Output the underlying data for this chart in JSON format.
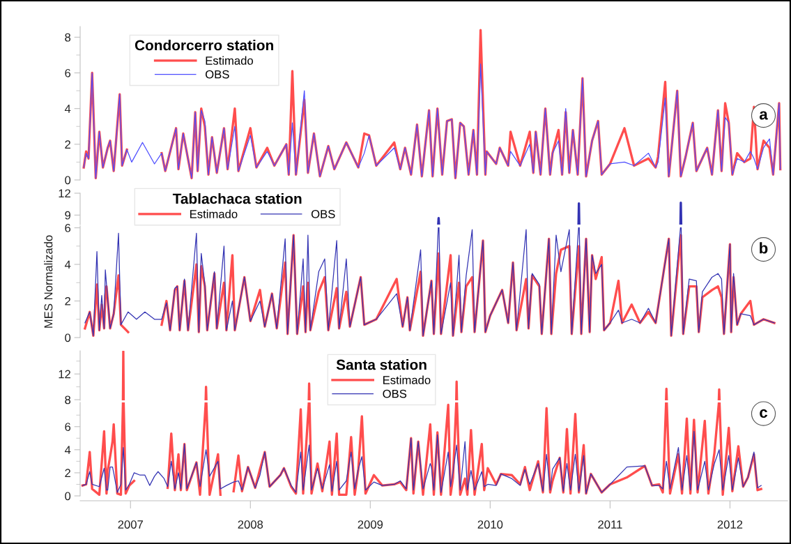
{
  "chart_data": [
    {
      "type": "line",
      "legend_title": "Condorcerro station",
      "legend": "top left",
      "tick_labels": "y",
      "annotations": [
        "a"
      ],
      "xlim": [
        2006.58,
        2012.48
      ],
      "ylim": [
        0,
        8.6
      ],
      "yticks": [
        0,
        {
          "value": 1,
          "label": null
        },
        2,
        {
          "value": 3,
          "label": null
        },
        4,
        {
          "value": 5,
          "label": null
        },
        6,
        {
          "value": 7,
          "label": null
        },
        8
      ],
      "x": [
        2006.61,
        2006.63,
        2006.65,
        2006.68,
        2006.71,
        2006.74,
        2006.77,
        2006.81,
        2006.83,
        2006.86,
        2006.91,
        2006.93,
        2006.97,
        2007.01,
        2007.1,
        2007.2,
        2007.26,
        2007.29,
        2007.38,
        2007.4,
        2007.44,
        2007.51,
        2007.54,
        2007.56,
        2007.59,
        2007.62,
        2007.65,
        2007.68,
        2007.72,
        2007.78,
        2007.81,
        2007.87,
        2007.9,
        2008.0,
        2008.05,
        2008.14,
        2008.2,
        2008.3,
        2008.32,
        2008.35,
        2008.38,
        2008.45,
        2008.48,
        2008.53,
        2008.58,
        2008.65,
        2008.7,
        2008.8,
        2008.9,
        2008.95,
        2008.99,
        2009.05,
        2009.2,
        2009.25,
        2009.29,
        2009.34,
        2009.39,
        2009.43,
        2009.49,
        2009.52,
        2009.56,
        2009.6,
        2009.64,
        2009.68,
        2009.71,
        2009.75,
        2009.78,
        2009.82,
        2009.86,
        2009.89,
        2009.92,
        2009.96,
        2009.97,
        2010.05,
        2010.08,
        2010.15,
        2010.17,
        2010.25,
        2010.33,
        2010.36,
        2010.38,
        2010.42,
        2010.46,
        2010.5,
        2010.52,
        2010.57,
        2010.6,
        2010.63,
        2010.66,
        2010.69,
        2010.73,
        2010.77,
        2010.8,
        2010.85,
        2010.9,
        2010.93,
        2011.0,
        2011.12,
        2011.2,
        2011.32,
        2011.38,
        2011.4,
        2011.46,
        2011.49,
        2011.56,
        2011.59,
        2011.63,
        2011.69,
        2011.72,
        2011.81,
        2011.85,
        2011.9,
        2011.93,
        2011.96,
        2011.99,
        2012.02,
        2012.06,
        2012.12,
        2012.17,
        2012.2,
        2012.23,
        2012.28,
        2012.33,
        2012.36,
        2012.41,
        2012.42
      ],
      "series": [
        {
          "name": "Estimado",
          "color": "#ff4d4d",
          "values": [
            0.7,
            1.6,
            1.2,
            6.0,
            0.1,
            2.7,
            0.7,
            1.8,
            2.2,
            0.5,
            4.8,
            0.8,
            1.7,
            null,
            null,
            null,
            1.5,
            0.5,
            2.9,
            0.6,
            2.6,
            0.1,
            3.8,
            0.5,
            4.0,
            3.0,
            0.3,
            2.4,
            0.4,
            2.9,
            0.6,
            4.0,
            0.5,
            2.9,
            0.7,
            1.8,
            0.8,
            2.0,
            0.3,
            6.1,
            0.3,
            4.5,
            0.4,
            2.6,
            0.2,
            1.9,
            0.6,
            2.1,
            0.7,
            2.6,
            2.5,
            0.8,
            2.1,
            0.6,
            1.8,
            0.3,
            3.1,
            0.2,
            3.9,
            0.2,
            4.0,
            0.3,
            3.3,
            3.4,
            0.1,
            3.2,
            3.0,
            0.3,
            2.8,
            0.3,
            8.4,
            0.3,
            1.6,
            0.9,
            1.8,
            0.8,
            2.7,
            0.8,
            2.7,
            0.4,
            2.7,
            0.3,
            4.0,
            0.3,
            1.5,
            2.8,
            0.3,
            3.8,
            0.4,
            2.8,
            0.3,
            5.7,
            0.2,
            2.2,
            3.3,
            0.3,
            0.9,
            2.9,
            0.8,
            1.2,
            0.7,
            1.3,
            5.5,
            0.2,
            5.0,
            0.2,
            1.3,
            3.2,
            0.5,
            1.8,
            0.3,
            3.9,
            0.5,
            4.3,
            3.2,
            0.3,
            1.5,
            1.0,
            1.2,
            4.1,
            0.6,
            2.2,
            1.8,
            0.3,
            4.3,
            0.6
          ]
        },
        {
          "name": "OBS",
          "color": "#4d4dff",
          "values": [
            0.7,
            1.5,
            1.2,
            6.0,
            0.1,
            2.7,
            0.7,
            1.8,
            2.2,
            0.5,
            4.8,
            0.8,
            1.7,
            1.0,
            2.1,
            0.9,
            1.5,
            0.5,
            2.9,
            0.6,
            2.6,
            0.1,
            3.8,
            0.5,
            3.9,
            3.3,
            0.3,
            2.4,
            0.4,
            2.9,
            0.6,
            3.0,
            0.5,
            2.5,
            0.7,
            1.6,
            0.8,
            2.0,
            0.3,
            3.2,
            0.3,
            5.0,
            0.4,
            2.6,
            0.2,
            1.9,
            0.6,
            2.1,
            0.7,
            1.5,
            2.5,
            0.8,
            1.8,
            0.6,
            1.8,
            0.3,
            3.1,
            0.2,
            3.9,
            0.2,
            4.0,
            0.3,
            3.3,
            3.4,
            0.1,
            3.2,
            3.0,
            0.3,
            2.8,
            0.3,
            6.5,
            0.3,
            1.6,
            0.9,
            1.8,
            0.8,
            1.6,
            0.8,
            2.0,
            0.4,
            2.7,
            0.3,
            4.0,
            0.3,
            1.5,
            2.2,
            0.3,
            4.0,
            0.4,
            2.8,
            0.3,
            5.7,
            0.2,
            2.2,
            3.3,
            0.3,
            0.9,
            1.0,
            0.8,
            1.5,
            0.7,
            1.0,
            4.6,
            0.2,
            5.0,
            0.2,
            1.3,
            3.2,
            0.5,
            1.8,
            0.3,
            3.9,
            0.5,
            3.5,
            3.2,
            0.3,
            1.2,
            1.0,
            1.6,
            1.2,
            0.6,
            1.8,
            2.3,
            0.3,
            4.3,
            0.6
          ]
        }
      ]
    },
    {
      "type": "line",
      "tick_labels": "y",
      "xlim": [
        2006.58,
        2012.48
      ],
      "ylim": [
        7.7,
        12
      ],
      "yticks": [
        9,
        12
      ],
      "series": [
        {
          "color": "#3333b3",
          "x": [
            2009.567,
            2009.57,
            2009.573,
            2009.58,
            2010.737,
            2010.74,
            2010.743,
            2010.75,
            2011.587,
            2011.59,
            2011.593
          ],
          "values": [
            7.8,
            8.6,
            7.8,
            null,
            7.8,
            10.6,
            7.8,
            null,
            7.8,
            10.7,
            7.8
          ]
        }
      ]
    },
    {
      "type": "line",
      "ylabel": "MES Normalizado",
      "legend_title": "Tablachaca station",
      "legend": "top left",
      "tick_labels": "y",
      "annotations": [
        "b"
      ],
      "xlim": [
        2006.58,
        2012.48
      ],
      "ylim": [
        0,
        6.1
      ],
      "yticks": [
        0,
        {
          "value": 1,
          "label": null
        },
        2,
        {
          "value": 3,
          "label": null
        },
        4,
        {
          "value": 5,
          "label": null
        },
        6
      ],
      "series": [
        {
          "name": "Estimado",
          "color": "#ff4d4d",
          "x": [
            2006.62,
            2006.66,
            2006.69,
            2006.72,
            2006.74,
            2006.76,
            2006.78,
            2006.79,
            2006.8,
            2006.83,
            2006.86,
            2006.9,
            2006.92,
            2006.98,
            2007.05,
            2007.12,
            2007.2,
            2007.26,
            2007.3,
            2007.33,
            2007.37,
            2007.39,
            2007.41,
            2007.45,
            2007.48,
            2007.55,
            2007.57,
            2007.59,
            2007.62,
            2007.64,
            2007.7,
            2007.72,
            2007.78,
            2007.8,
            2007.85,
            2007.87,
            2007.95,
            2008.0,
            2008.08,
            2008.12,
            2008.18,
            2008.22,
            2008.29,
            2008.31,
            2008.36,
            2008.39,
            2008.44,
            2008.46,
            2008.48,
            2008.5,
            2008.57,
            2008.62,
            2008.65,
            2008.72,
            2008.74,
            2008.8,
            2008.83,
            2008.92,
            2008.95,
            2009.05,
            2009.22,
            2009.27,
            2009.31,
            2009.33,
            2009.42,
            2009.44,
            2009.51,
            2009.53,
            2009.57,
            2009.59,
            2009.67,
            2009.69,
            2009.74,
            2009.76,
            2009.8,
            2009.85,
            2009.87,
            2009.94,
            2009.96,
            2010.0,
            2010.1,
            2010.15,
            2010.19,
            2010.22,
            2010.3,
            2010.32,
            2010.35,
            2010.41,
            2010.43,
            2010.49,
            2010.51,
            2010.55,
            2010.59,
            2010.66,
            2010.68,
            2010.74,
            2010.76,
            2010.8,
            2010.83,
            2010.85,
            2010.88,
            2010.93,
            2010.95,
            2011.0,
            2011.07,
            2011.1,
            2011.18,
            2011.25,
            2011.32,
            2011.38,
            2011.49,
            2011.51,
            2011.59,
            2011.61,
            2011.66,
            2011.72,
            2011.74,
            2011.77,
            2011.85,
            2011.9,
            2011.93,
            2011.95,
            2012.0,
            2012.01,
            2012.03,
            2012.06,
            2012.09,
            2012.17,
            2012.2,
            2012.28,
            2012.37
          ],
          "values": [
            0.5,
            1.4,
            0.1,
            2.9,
            0.4,
            1.8,
            0.5,
            2.3,
            2.8,
            0.5,
            1.3,
            3.4,
            0.7,
            0.3,
            null,
            null,
            null,
            0.7,
            2.0,
            0.4,
            2.6,
            2.8,
            0.4,
            3.1,
            0.4,
            4.0,
            0.3,
            3.9,
            2.8,
            0.4,
            3.5,
            0.5,
            3.0,
            0.4,
            4.5,
            0.4,
            3.3,
            0.9,
            2.6,
            0.6,
            2.4,
            0.5,
            4.1,
            0.2,
            5.6,
            0.2,
            2.8,
            0.3,
            3.0,
            0.4,
            2.5,
            3.3,
            0.4,
            2.7,
            0.5,
            2.5,
            0.6,
            3.3,
            0.7,
            1.0,
            3.2,
            0.6,
            2.2,
            0.4,
            3.6,
            0.1,
            3.1,
            0.2,
            4.6,
            0.2,
            4.5,
            0.1,
            3.0,
            0.3,
            2.8,
            3.3,
            0.3,
            5.3,
            0.3,
            1.2,
            2.6,
            0.8,
            4.1,
            0.4,
            3.2,
            0.5,
            3.4,
            2.8,
            0.2,
            5.4,
            0.2,
            3.5,
            4.8,
            5.0,
            0.2,
            5.0,
            0.2,
            5.4,
            0.3,
            4.5,
            3.2,
            4.4,
            0.4,
            0.8,
            3.1,
            0.8,
            1.8,
            0.8,
            1.4,
            0.8,
            5.4,
            0.1,
            5.6,
            0.2,
            2.8,
            2.8,
            0.3,
            2.2,
            2.6,
            2.8,
            2.2,
            0.2,
            5.1,
            0.3,
            3.3,
            0.7,
            1.3,
            2.0,
            0.7,
            1.0,
            0.8
          ]
        },
        {
          "name": "OBS",
          "color": "#3333b3",
          "x": [
            2006.62,
            2006.66,
            2006.69,
            2006.72,
            2006.74,
            2006.76,
            2006.78,
            2006.79,
            2006.8,
            2006.83,
            2006.86,
            2006.9,
            2006.92,
            2006.98,
            2007.05,
            2007.12,
            2007.2,
            2007.26,
            2007.3,
            2007.33,
            2007.37,
            2007.39,
            2007.41,
            2007.45,
            2007.48,
            2007.55,
            2007.57,
            2007.59,
            2007.62,
            2007.64,
            2007.7,
            2007.72,
            2007.78,
            2007.8,
            2007.85,
            2007.87,
            2007.95,
            2008.0,
            2008.08,
            2008.12,
            2008.18,
            2008.22,
            2008.29,
            2008.31,
            2008.36,
            2008.39,
            2008.44,
            2008.46,
            2008.48,
            2008.5,
            2008.57,
            2008.62,
            2008.65,
            2008.72,
            2008.74,
            2008.8,
            2008.83,
            2008.92,
            2008.95,
            2009.05,
            2009.22,
            2009.27,
            2009.31,
            2009.33,
            2009.42,
            2009.44,
            2009.51,
            2009.53,
            2009.567,
            2009.57,
            2009.573,
            2009.59,
            2009.67,
            2009.69,
            2009.74,
            2009.76,
            2009.8,
            2009.85,
            2009.87,
            2009.94,
            2009.96,
            2010.0,
            2010.1,
            2010.15,
            2010.19,
            2010.22,
            2010.3,
            2010.32,
            2010.35,
            2010.41,
            2010.43,
            2010.49,
            2010.51,
            2010.55,
            2010.59,
            2010.66,
            2010.68,
            2010.737,
            2010.74,
            2010.743,
            2010.76,
            2010.8,
            2010.83,
            2010.85,
            2010.88,
            2010.93,
            2010.95,
            2011.0,
            2011.07,
            2011.1,
            2011.18,
            2011.25,
            2011.32,
            2011.38,
            2011.49,
            2011.51,
            2011.587,
            2011.59,
            2011.593,
            2011.61,
            2011.66,
            2011.72,
            2011.74,
            2011.77,
            2011.85,
            2011.9,
            2011.93,
            2011.95,
            2012.0,
            2012.01,
            2012.03,
            2012.06,
            2012.09,
            2012.17,
            2012.2,
            2012.28,
            2012.37
          ],
          "values": [
            0.8,
            1.4,
            0.1,
            4.7,
            0.4,
            2.3,
            0.5,
            3.7,
            2.9,
            0.5,
            1.3,
            5.7,
            0.7,
            1.4,
            1.0,
            1.4,
            1.0,
            1.0,
            1.9,
            0.4,
            2.7,
            2.8,
            0.4,
            3.2,
            0.4,
            5.7,
            0.3,
            4.6,
            2.9,
            0.4,
            3.6,
            0.5,
            5.0,
            0.4,
            2.0,
            0.4,
            3.3,
            0.9,
            2.0,
            0.6,
            2.4,
            0.5,
            5.4,
            0.2,
            5.6,
            0.2,
            4.3,
            0.3,
            5.6,
            0.4,
            3.6,
            4.3,
            0.4,
            5.3,
            0.5,
            4.3,
            0.6,
            3.3,
            0.7,
            1.0,
            2.4,
            0.6,
            2.2,
            0.4,
            4.8,
            0.1,
            3.1,
            0.2,
            6,
            null,
            6,
            0.2,
            3.0,
            0.1,
            4.5,
            0.3,
            3.4,
            5.9,
            0.3,
            5.3,
            0.3,
            1.2,
            2.6,
            0.8,
            4.1,
            0.4,
            5.9,
            0.5,
            3.5,
            2.9,
            0.2,
            5.4,
            0.2,
            5.6,
            3.6,
            5.9,
            0.2,
            6,
            null,
            6,
            0.2,
            5.4,
            0.3,
            4.5,
            3.5,
            4.0,
            0.4,
            0.8,
            1.5,
            0.8,
            1.0,
            0.8,
            1.6,
            0.8,
            5.4,
            0.1,
            6,
            null,
            6,
            0.2,
            3.2,
            3.1,
            0.3,
            2.5,
            3.3,
            3.5,
            3.2,
            0.2,
            5.1,
            0.3,
            3.5,
            0.7,
            1.3,
            1.2,
            0.7,
            1.0,
            0.8
          ]
        }
      ]
    },
    {
      "type": "line",
      "tick_labels": "y",
      "xlim": [
        2006.58,
        2012.48
      ],
      "ylim": [
        7.9,
        15.6
      ],
      "yticks": [
        8,
        {
          "value": 10,
          "label": null
        },
        12,
        {
          "value": 14,
          "label": null
        }
      ],
      "series": [
        {
          "color": "#ff4d4d",
          "x": [
            2006.937,
            2006.94,
            2006.943,
            2006.95,
            2007.627,
            2007.63,
            2007.633,
            2007.64,
            2008.487,
            2008.49,
            2008.493,
            2008.5,
            2009.717,
            2009.72,
            2009.723,
            2009.73,
            2011.467,
            2011.47,
            2011.473,
            2011.48,
            2011.907,
            2011.91,
            2011.913
          ],
          "values": [
            8,
            15.5,
            8,
            null,
            8,
            10.0,
            8,
            null,
            8,
            10.5,
            8,
            null,
            8,
            10.8,
            8,
            null,
            8,
            9.7,
            8,
            null,
            8,
            9.6,
            8
          ]
        }
      ]
    },
    {
      "type": "line",
      "legend_title": "Santa station",
      "legend": "top left",
      "annotations": [
        "c"
      ],
      "xlim": [
        2006.58,
        2012.48
      ],
      "xticks": [
        2007,
        2008,
        2009,
        2010,
        2011,
        2012
      ],
      "ylim": [
        0,
        8.1
      ],
      "yticks": [
        0,
        {
          "value": 1,
          "label": null
        },
        2,
        {
          "value": 3,
          "label": null
        },
        4,
        {
          "value": 5,
          "label": null
        },
        6,
        {
          "value": 7,
          "label": null
        }
      ],
      "x": [
        2006.6,
        2006.63,
        2006.66,
        2006.68,
        2006.74,
        2006.78,
        2006.8,
        2006.81,
        2006.83,
        2006.85,
        2006.86,
        2006.89,
        2006.92,
        2006.94,
        2006.96,
        2006.99,
        2007.03,
        2007.08,
        2007.12,
        2007.16,
        2007.2,
        2007.23,
        2007.28,
        2007.31,
        2007.34,
        2007.37,
        2007.4,
        2007.42,
        2007.45,
        2007.47,
        2007.55,
        2007.58,
        2007.63,
        2007.66,
        2007.73,
        2007.75,
        2007.8,
        2007.86,
        2007.9,
        2007.93,
        2007.98,
        2008.04,
        2008.08,
        2008.12,
        2008.16,
        2008.25,
        2008.28,
        2008.34,
        2008.38,
        2008.42,
        2008.44,
        2008.49,
        2008.51,
        2008.56,
        2008.6,
        2008.66,
        2008.68,
        2008.72,
        2008.74,
        2008.8,
        2008.84,
        2008.87,
        2008.9,
        2008.93,
        2008.96,
        2009.03,
        2009.1,
        2009.2,
        2009.25,
        2009.3,
        2009.34,
        2009.36,
        2009.4,
        2009.44,
        2009.5,
        2009.51,
        2009.53,
        2009.56,
        2009.59,
        2009.65,
        2009.67,
        2009.69,
        2009.72,
        2009.75,
        2009.79,
        2009.81,
        2009.84,
        2009.87,
        2009.93,
        2009.95,
        2009.98,
        2010.05,
        2010.09,
        2010.18,
        2010.25,
        2010.29,
        2010.33,
        2010.4,
        2010.44,
        2010.47,
        2010.5,
        2010.52,
        2010.58,
        2010.61,
        2010.64,
        2010.67,
        2010.71,
        2010.74,
        2010.78,
        2010.8,
        2010.84,
        2010.93,
        2011.0,
        2011.14,
        2011.29,
        2011.35,
        2011.41,
        2011.44,
        2011.47,
        2011.5,
        2011.57,
        2011.6,
        2011.64,
        2011.67,
        2011.7,
        2011.73,
        2011.79,
        2011.82,
        2011.87,
        2011.91,
        2011.94,
        2011.99,
        2012.02,
        2012.07,
        2012.11,
        2012.15,
        2012.2,
        2012.23,
        2012.26
      ],
      "series": [
        {
          "name": "Estimado",
          "color": "#ff4d4d",
          "x": [
            2006.6,
            2006.63,
            2006.66,
            2006.68,
            2006.74,
            2006.78,
            2006.8,
            2006.81,
            2006.83,
            2006.85,
            2006.86,
            2006.89,
            2006.92,
            2006.937,
            2006.94,
            2006.943,
            2006.96,
            2006.99,
            2007.03,
            2007.08,
            2007.12,
            2007.16,
            2007.2,
            2007.23,
            2007.28,
            2007.31,
            2007.34,
            2007.37,
            2007.4,
            2007.42,
            2007.45,
            2007.47,
            2007.55,
            2007.58,
            2007.627,
            2007.63,
            2007.633,
            2007.66,
            2007.73,
            2007.75,
            2007.8,
            2007.86,
            2007.9,
            2007.93,
            2007.98,
            2008.04,
            2008.08,
            2008.12,
            2008.16,
            2008.25,
            2008.28,
            2008.34,
            2008.38,
            2008.42,
            2008.44,
            2008.487,
            2008.49,
            2008.493,
            2008.51,
            2008.56,
            2008.6,
            2008.66,
            2008.68,
            2008.72,
            2008.74,
            2008.8,
            2008.84,
            2008.87,
            2008.9,
            2008.93,
            2008.96,
            2009.03,
            2009.1,
            2009.2,
            2009.25,
            2009.3,
            2009.34,
            2009.36,
            2009.4,
            2009.44,
            2009.5,
            2009.51,
            2009.53,
            2009.56,
            2009.59,
            2009.65,
            2009.67,
            2009.69,
            2009.717,
            2009.72,
            2009.723,
            2009.75,
            2009.79,
            2009.81,
            2009.84,
            2009.87,
            2009.93,
            2009.95,
            2009.98,
            2010.05,
            2010.09,
            2010.18,
            2010.25,
            2010.29,
            2010.33,
            2010.4,
            2010.44,
            2010.47,
            2010.5,
            2010.52,
            2010.58,
            2010.61,
            2010.64,
            2010.67,
            2010.71,
            2010.74,
            2010.78,
            2010.8,
            2010.84,
            2010.93,
            2011.0,
            2011.14,
            2011.29,
            2011.35,
            2011.41,
            2011.44,
            2011.467,
            2011.47,
            2011.473,
            2011.5,
            2011.57,
            2011.6,
            2011.64,
            2011.67,
            2011.7,
            2011.73,
            2011.79,
            2011.82,
            2011.87,
            2011.907,
            2011.91,
            2011.913,
            2011.94,
            2011.99,
            2012.02,
            2012.07,
            2012.11,
            2012.15,
            2012.2,
            2012.23,
            2012.26
          ],
          "values": [
            0.9,
            1.0,
            3.8,
            0.6,
            0.1,
            5.6,
            0.2,
            2.2,
            3.4,
            4.7,
            6.2,
            0.2,
            0.1,
            8,
            null,
            8,
            0.2,
            0.9,
            1.3,
            null,
            null,
            null,
            null,
            null,
            null,
            0.7,
            5.4,
            0.5,
            3.6,
            0.5,
            4.5,
            0.5,
            2.9,
            0.1,
            8,
            null,
            8,
            0.1,
            3.6,
            0.1,
            null,
            0.4,
            3.5,
            0.4,
            2.5,
            0.7,
            2.3,
            3.8,
            0.8,
            1.8,
            2.4,
            0.8,
            0.2,
            7.5,
            0.2,
            8,
            null,
            8,
            0.2,
            2.8,
            0.4,
            4.7,
            0.1,
            5.4,
            0.1,
            0.1,
            5.1,
            0.1,
            2.3,
            6.9,
            0.2,
            1.8,
            0.9,
            1.0,
            1.2,
            0.5,
            5.0,
            0.2,
            4.7,
            0.1,
            6.2,
            4.1,
            0.1,
            5.5,
            0.1,
            7.9,
            0.1,
            1.6,
            8,
            null,
            8,
            0.1,
            1.5,
            0.1,
            5.7,
            0.1,
            4.5,
            0.5,
            2.4,
            1.0,
            1.9,
            1.8,
            1.0,
            2.5,
            0.5,
            3.0,
            0.3,
            7.6,
            0.3,
            1.3,
            3.3,
            0.3,
            5.8,
            0.2,
            7.1,
            0.3,
            4.4,
            0.2,
            1.9,
            0.3,
            1.0,
            1.6,
            2.6,
            0.9,
            1.0,
            0.3,
            8,
            null,
            8,
            0.2,
            3.6,
            0.2,
            6.7,
            0.2,
            6.6,
            0.3,
            6.5,
            0.2,
            3.7,
            8,
            null,
            8,
            0.1,
            5.9,
            0.4,
            4.3,
            0.8,
            1.6,
            3.6,
            0.5,
            0.6
          ]
        },
        {
          "name": "OBS",
          "color": "#3333b3",
          "values": [
            0.9,
            1.0,
            2.1,
            1.0,
            0.8,
            2.4,
            0.5,
            0.5,
            2.5,
            2.5,
            2.0,
            0.3,
            1.0,
            4.2,
            0.5,
            1.0,
            2.0,
            1.8,
            1.8,
            0.9,
            1.7,
            2.1,
            1.5,
            0.8,
            3.0,
            0.6,
            2.0,
            0.6,
            4.5,
            0.6,
            2.9,
            0.8,
            4.0,
            1.7,
            3.0,
            0.6,
            0.9,
            1.2,
            1.3,
            0.5,
            2.5,
            0.7,
            1.8,
            3.8,
            0.8,
            1.8,
            2.4,
            0.9,
            0.3,
            3.8,
            0.5,
            4.4,
            0.5,
            2.4,
            0.6,
            2.7,
            0.4,
            3.0,
            0.5,
            1.3,
            3.8,
            0.6,
            2.3,
            3.4,
            0.5,
            1.2,
            0.9,
            1.0,
            1.3,
            0.6,
            5.0,
            0.5,
            4.7,
            0.6,
            2.8,
            2.5,
            0.5,
            5.3,
            0.3,
            3.8,
            0.8,
            2.1,
            4.4,
            0.5,
            4.7,
            0.5,
            2.2,
            0.5,
            2.1,
            0.8,
            1.0,
            0.9,
            1.9,
            1.5,
            0.9,
            2.3,
            1.0,
            2.8,
            0.4,
            3.6,
            0.5,
            2.3,
            3.3,
            0.4,
            2.8,
            0.5,
            3.6,
            0.4,
            3.5,
            0.2,
            1.9,
            0.3,
            1.0,
            2.5,
            2.6,
            0.9,
            0.9,
            0.6,
            3.0,
            0.6,
            4.2,
            0.5,
            3.5,
            0.5,
            5.6,
            0.5,
            3.0,
            0.5,
            2.8,
            4.0,
            0.5,
            3.5,
            0.5,
            3.3,
            0.8,
            1.6,
            3.8,
            0.7,
            0.9
          ]
        }
      ]
    }
  ]
}
